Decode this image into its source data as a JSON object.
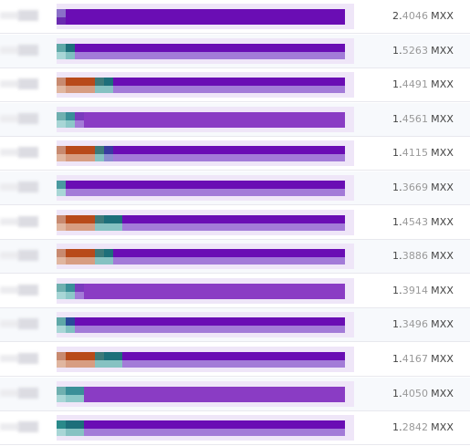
{
  "currency": "MXX",
  "rows": [
    {
      "int": "2.",
      "frac": "4046",
      "segs": [
        [
          "#8a6fc8",
          "#6a2ab0",
          10
        ],
        [
          "#6a0db4",
          "#6a0db4",
          306
        ]
      ]
    },
    {
      "int": "1.",
      "frac": "5263",
      "segs": [
        [
          "#5fa8a8",
          "#a8d6d6",
          10
        ],
        [
          "#1d6f7a",
          "#7fc0c0",
          10
        ],
        [
          "#6a0db4",
          "#a37bd8",
          296
        ]
      ]
    },
    {
      "int": "1.",
      "frac": "4491",
      "segs": [
        [
          "#c88a70",
          "#e0b6a0",
          10
        ],
        [
          "#b84a1a",
          "#d79d82",
          32
        ],
        [
          "#3d7a7a",
          "#86c2c2",
          10
        ],
        [
          "#1d6f7a",
          "#86c2c2",
          10
        ],
        [
          "#6a0db4",
          "#a37bd8",
          254
        ]
      ]
    },
    {
      "int": "1.",
      "frac": "4561",
      "segs": [
        [
          "#6fb0b0",
          "#a8d6d6",
          10
        ],
        [
          "#3a8f98",
          "#8cc8c8",
          10
        ],
        [
          "#7b3bbd",
          "#a37bd8",
          10
        ],
        [
          "#8a3cc4",
          "#8a3cc4",
          286
        ]
      ]
    },
    {
      "int": "1.",
      "frac": "4115",
      "segs": [
        [
          "#c88a70",
          "#e0b6a0",
          10
        ],
        [
          "#b84a1a",
          "#d79d82",
          32
        ],
        [
          "#3d7a7a",
          "#86c2c2",
          10
        ],
        [
          "#3a3aa0",
          "#8c8cd0",
          10
        ],
        [
          "#6a0db4",
          "#a37bd8",
          254
        ]
      ]
    },
    {
      "int": "1.",
      "frac": "3669",
      "segs": [
        [
          "#4a9aa0",
          "#a8d6d6",
          10
        ],
        [
          "#6a0db4",
          "#a37bd8",
          306
        ]
      ]
    },
    {
      "int": "1.",
      "frac": "4543",
      "segs": [
        [
          "#c88a70",
          "#e0b6a0",
          10
        ],
        [
          "#b84a1a",
          "#d79d82",
          32
        ],
        [
          "#3d7a7a",
          "#86c2c2",
          10
        ],
        [
          "#1d6f7a",
          "#86c2c2",
          20
        ],
        [
          "#6a0db4",
          "#a37bd8",
          244
        ]
      ]
    },
    {
      "int": "1.",
      "frac": "3886",
      "segs": [
        [
          "#c88a70",
          "#e0b6a0",
          10
        ],
        [
          "#b84a1a",
          "#d79d82",
          32
        ],
        [
          "#3d7a7a",
          "#86c2c2",
          10
        ],
        [
          "#1d6f7a",
          "#86c2c2",
          10
        ],
        [
          "#6a0db4",
          "#a37bd8",
          254
        ]
      ]
    },
    {
      "int": "1.",
      "frac": "3914",
      "segs": [
        [
          "#6fb0b0",
          "#a8d6d6",
          10
        ],
        [
          "#3a8f98",
          "#8cc8c8",
          10
        ],
        [
          "#7b3bbd",
          "#a37bd8",
          10
        ],
        [
          "#8a3cc4",
          "#8a3cc4",
          286
        ]
      ]
    },
    {
      "int": "1.",
      "frac": "3496",
      "segs": [
        [
          "#5fa8a8",
          "#a8d6d6",
          10
        ],
        [
          "#2a4a9a",
          "#7fc0c0",
          10
        ],
        [
          "#6a0db4",
          "#a37bd8",
          296
        ]
      ]
    },
    {
      "int": "1.",
      "frac": "4167",
      "segs": [
        [
          "#c88a70",
          "#e0b6a0",
          10
        ],
        [
          "#b84a1a",
          "#d79d82",
          32
        ],
        [
          "#3d7a7a",
          "#86c2c2",
          10
        ],
        [
          "#1d6f7a",
          "#86c2c2",
          20
        ],
        [
          "#6a0db4",
          "#a37bd8",
          244
        ]
      ]
    },
    {
      "int": "1.",
      "frac": "4050",
      "segs": [
        [
          "#6fb0b0",
          "#a8d6d6",
          10
        ],
        [
          "#3a8f98",
          "#8cc8c8",
          20
        ],
        [
          "#8a3cc4",
          "#8a3cc4",
          286
        ]
      ]
    },
    {
      "int": "1.",
      "frac": "2842",
      "segs": [
        [
          "#2a8a8a",
          "#a8d6d6",
          10
        ],
        [
          "#1d6f7a",
          "#86c2c2",
          20
        ],
        [
          "#6a0db4",
          "#a37bd8",
          286
        ]
      ]
    }
  ]
}
